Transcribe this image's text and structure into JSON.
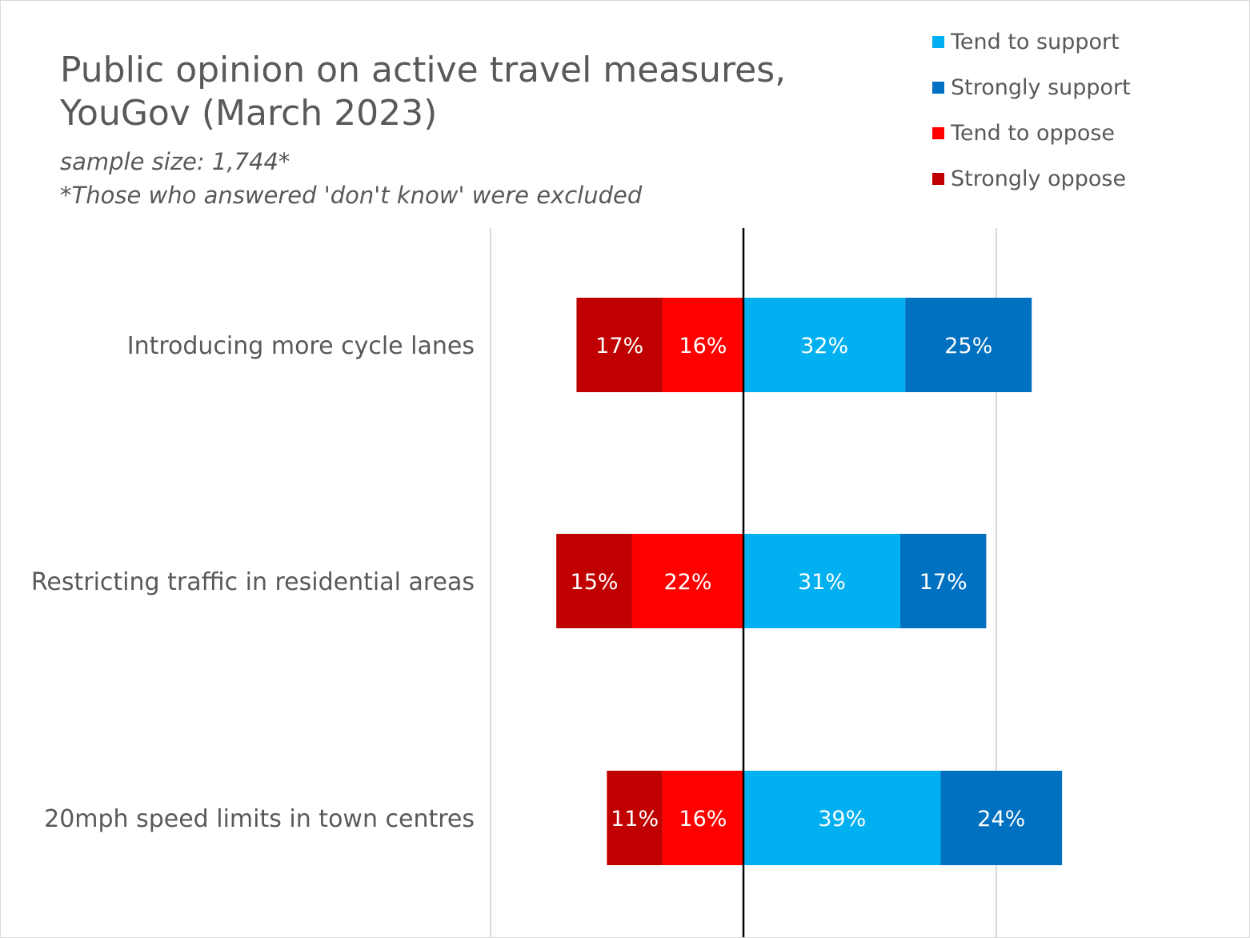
{
  "chart_data": {
    "type": "bar",
    "orientation": "horizontal",
    "stacked": "diverging",
    "title": "Public opinion on active travel measures, YouGov (March 2023)",
    "subtitle": "sample size: 1,744*",
    "note": "*Those who answered 'don't know' were excluded",
    "categories": [
      "Introducing more cycle lanes",
      "Restricting traffic in residential areas",
      "20mph speed limits in town centres"
    ],
    "series": [
      {
        "name": "Tend to support",
        "side": "positive",
        "color": "#00B0F0",
        "values": [
          32,
          31,
          39
        ],
        "labels": [
          "32%",
          "31%",
          "39%"
        ]
      },
      {
        "name": "Strongly support",
        "side": "positive",
        "color": "#0070C0",
        "values": [
          25,
          17,
          24
        ],
        "labels": [
          "25%",
          "17%",
          "24%"
        ]
      },
      {
        "name": "Tend to oppose",
        "side": "negative",
        "color": "#FF0000",
        "values": [
          16,
          22,
          16
        ],
        "labels": [
          "16%",
          "22%",
          "16%"
        ]
      },
      {
        "name": "Strongly oppose",
        "side": "negative",
        "color": "#C00000",
        "values": [
          17,
          15,
          11
        ],
        "labels": [
          "17%",
          "15%",
          "11%"
        ]
      }
    ],
    "xlim": [
      -50,
      100
    ],
    "gridlines": [
      -50,
      50
    ],
    "legend_position": "top-right"
  }
}
